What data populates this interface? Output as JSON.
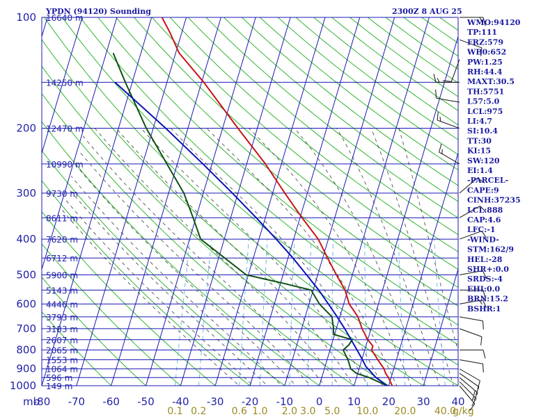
{
  "header": {
    "title": "YPDN (94120) Sounding",
    "time": "2300Z  8 AUG 25"
  },
  "chart_data": {
    "type": "line",
    "title": "YPDN (94120) Sounding",
    "y_axis_unit": "mb",
    "y_scale": "log",
    "ylim": [
      1000,
      100
    ],
    "xlim": [
      -80,
      40
    ],
    "pressure_ticks": [
      100,
      200,
      300,
      400,
      500,
      600,
      700,
      800,
      900,
      1000
    ],
    "temperature_ticks": [
      -80,
      -70,
      -60,
      -50,
      -40,
      -30,
      -20,
      -10,
      0,
      10,
      20,
      30,
      40
    ],
    "height_labels": [
      {
        "p": 100,
        "label": "16640 m"
      },
      {
        "p": 150,
        "label": "14250 m"
      },
      {
        "p": 200,
        "label": "12470 m"
      },
      {
        "p": 250,
        "label": "10990 m"
      },
      {
        "p": 300,
        "label": "9730 m"
      },
      {
        "p": 350,
        "label": "8611 m"
      },
      {
        "p": 400,
        "label": "7620 m"
      },
      {
        "p": 450,
        "label": "6712 m"
      },
      {
        "p": 500,
        "label": "5900 m"
      },
      {
        "p": 550,
        "label": "5143 m"
      },
      {
        "p": 600,
        "label": "4446 m"
      },
      {
        "p": 650,
        "label": "3793 m"
      },
      {
        "p": 700,
        "label": "3183 m"
      },
      {
        "p": 750,
        "label": "2607 m"
      },
      {
        "p": 800,
        "label": "2065 m"
      },
      {
        "p": 850,
        "label": "1553 m"
      },
      {
        "p": 900,
        "label": "1064 m"
      },
      {
        "p": 950,
        "label": "596 m"
      },
      {
        "p": 1000,
        "label": "149 m"
      }
    ],
    "mixing_ratio_labels": [
      "0.1",
      "0.2",
      "0.6",
      "1.0",
      "2.0",
      "3.0",
      "5.0",
      "10.0",
      "20.0",
      "40.0"
    ],
    "mixing_ratio_unit": "g/kg",
    "series": [
      {
        "color": "#c81414",
        "points": [
          {
            "p": 1006,
            "t": 21.4
          },
          {
            "p": 1000,
            "t": 21.0
          },
          {
            "p": 950,
            "t": 19.2
          },
          {
            "p": 925,
            "t": 18.0
          },
          {
            "p": 900,
            "t": 17.2
          },
          {
            "p": 850,
            "t": 14.6
          },
          {
            "p": 800,
            "t": 12.0
          },
          {
            "p": 780,
            "t": 12.0
          },
          {
            "p": 750,
            "t": 10.0
          },
          {
            "p": 700,
            "t": 7.4
          },
          {
            "p": 650,
            "t": 5.2
          },
          {
            "p": 600,
            "t": 1.6
          },
          {
            "p": 575,
            "t": 0.4
          },
          {
            "p": 550,
            "t": -0.8
          },
          {
            "p": 500,
            "t": -4.6
          },
          {
            "p": 450,
            "t": -8.6
          },
          {
            "p": 400,
            "t": -12.9
          },
          {
            "p": 350,
            "t": -19.4
          },
          {
            "p": 300,
            "t": -26.5
          },
          {
            "p": 250,
            "t": -34.6
          },
          {
            "p": 200,
            "t": -45.6
          },
          {
            "p": 150,
            "t": -59.4
          },
          {
            "p": 125,
            "t": -69.0
          },
          {
            "p": 110,
            "t": -73.4
          },
          {
            "p": 100,
            "t": -77.0
          }
        ]
      },
      {
        "color": "#0e5010",
        "points": [
          {
            "p": 1006,
            "t": 20.4
          },
          {
            "p": 1000,
            "t": 19.5
          },
          {
            "p": 950,
            "t": 13.6
          },
          {
            "p": 925,
            "t": 9.6
          },
          {
            "p": 900,
            "t": 7.6
          },
          {
            "p": 850,
            "t": 6.0
          },
          {
            "p": 800,
            "t": 3.8
          },
          {
            "p": 775,
            "t": 5.0
          },
          {
            "p": 750,
            "t": 5.5
          },
          {
            "p": 725,
            "t": -0.4
          },
          {
            "p": 700,
            "t": -0.8
          },
          {
            "p": 650,
            "t": -2.3
          },
          {
            "p": 600,
            "t": -7.0
          },
          {
            "p": 550,
            "t": -10.6
          },
          {
            "p": 525,
            "t": -20.0
          },
          {
            "p": 500,
            "t": -30.6
          },
          {
            "p": 400,
            "t": -46.8
          },
          {
            "p": 350,
            "t": -50.8
          },
          {
            "p": 300,
            "t": -55.6
          },
          {
            "p": 250,
            "t": -63.0
          },
          {
            "p": 200,
            "t": -72.0
          },
          {
            "p": 150,
            "t": -82.0
          },
          {
            "p": 125,
            "t": -88.0
          }
        ]
      },
      {
        "color": "#0a14b4",
        "points": [
          {
            "p": 1006,
            "t": 20.7
          },
          {
            "p": 1000,
            "t": 19.5
          },
          {
            "p": 950,
            "t": 15.6
          },
          {
            "p": 900,
            "t": 12.6
          },
          {
            "p": 888,
            "t": 11.8
          },
          {
            "p": 850,
            "t": 10.2
          },
          {
            "p": 800,
            "t": 7.8
          },
          {
            "p": 750,
            "t": 5.2
          },
          {
            "p": 700,
            "t": 2.4
          },
          {
            "p": 650,
            "t": -0.8
          },
          {
            "p": 600,
            "t": -4.4
          },
          {
            "p": 550,
            "t": -8.4
          },
          {
            "p": 500,
            "t": -13.2
          },
          {
            "p": 450,
            "t": -18.6
          },
          {
            "p": 400,
            "t": -25.0
          },
          {
            "p": 350,
            "t": -32.6
          },
          {
            "p": 300,
            "t": -41.6
          },
          {
            "p": 250,
            "t": -52.6
          },
          {
            "p": 200,
            "t": -66.4
          },
          {
            "p": 150,
            "t": -85.0
          }
        ]
      }
    ],
    "wind_barbs": [
      {
        "p": 1000,
        "dir": 140,
        "spd": 10
      },
      {
        "p": 975,
        "dir": 135,
        "spd": 15
      },
      {
        "p": 950,
        "dir": 130,
        "spd": 15
      },
      {
        "p": 925,
        "dir": 125,
        "spd": 10
      },
      {
        "p": 900,
        "dir": 120,
        "spd": 10
      },
      {
        "p": 850,
        "dir": 100,
        "spd": 10
      },
      {
        "p": 800,
        "dir": 90,
        "spd": 10
      },
      {
        "p": 700,
        "dir": 110,
        "spd": 10
      },
      {
        "p": 650,
        "dir": 100,
        "spd": 10
      },
      {
        "p": 600,
        "dir": 80,
        "spd": 15
      },
      {
        "p": 550,
        "dir": 90,
        "spd": 10
      },
      {
        "p": 500,
        "dir": 80,
        "spd": 10
      },
      {
        "p": 400,
        "dir": 70,
        "spd": 10
      },
      {
        "p": 350,
        "dir": 60,
        "spd": 10
      },
      {
        "p": 300,
        "dir": 50,
        "spd": 10
      },
      {
        "p": 250,
        "dir": 300,
        "spd": 15
      },
      {
        "p": 200,
        "dir": 290,
        "spd": 15
      },
      {
        "p": 170,
        "dir": 280,
        "spd": 10
      },
      {
        "p": 150,
        "dir": 270,
        "spd": 15
      },
      {
        "p": 130,
        "dir": 200,
        "spd": 10
      },
      {
        "p": 115,
        "dir": 110,
        "spd": 10
      },
      {
        "p": 100,
        "dir": 90,
        "spd": 15
      }
    ]
  },
  "indices": [
    "WMO:94120",
    "TP:111",
    "FRZ:579",
    "WB0:652",
    "PW:1.25",
    "RH:44.4",
    "MAXT:30.5",
    "TH:5751",
    "L57:5.0",
    "LCL:975",
    "LI:4.7",
    "SI:10.4",
    "TT:30",
    "KI:15",
    "SW:120",
    "EI:1.4",
    "-PARCEL-",
    "CAPE:9",
    "CINH:37235",
    "LCL:888",
    "CAP:4.6",
    "LFC:-1",
    "-WIND-",
    "STM:162/9",
    "HEL:-28",
    "SHR+:0.0",
    "SRDS:-4",
    "EHI:0.0",
    "BRN:15.2",
    "BSHR:1"
  ],
  "colors": {
    "isobar": "#1818b4",
    "isotherm": "#1818b4",
    "dry_adiabat": "#30b430",
    "moist_adiabat": "#3c3c3c",
    "mixing_ratio": "#5ab4dc"
  }
}
